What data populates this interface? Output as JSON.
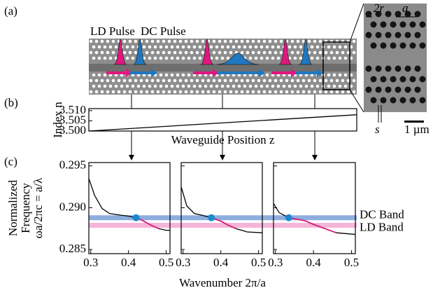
{
  "panel_labels": [
    "(a)",
    "(b)",
    "(c)"
  ],
  "pulses": [
    {
      "name": "LD Pulse",
      "color": "#e0177f"
    },
    {
      "name": "DC Pulse",
      "color": "#1f78c1"
    }
  ],
  "sem": {
    "hole_diameter": "2r",
    "period": "a",
    "gap": "s",
    "scale_bar": "1 µm"
  },
  "bands": [
    {
      "name": "DC Band",
      "color": "#7aa0d8",
      "value": 0.2888
    },
    {
      "name": "LD Band",
      "color": "#f4a9d0",
      "value": 0.2879
    }
  ],
  "chart_data": [
    {
      "type": "line",
      "y_label": "Index n",
      "x_label": "Waveguide Position z",
      "xlim": [
        0,
        1
      ],
      "ylim": [
        3.5,
        3.511
      ],
      "yticks": [
        {
          "value": 3.5,
          "label": "3.500"
        },
        {
          "value": 3.505,
          "label": "3.505"
        },
        {
          "value": 3.51,
          "label": "3.510"
        }
      ],
      "series": [
        {
          "color": "#000000",
          "x": [
            0,
            1
          ],
          "values": [
            3.5,
            3.508
          ]
        }
      ]
    },
    {
      "type": "line",
      "y_label": [
        "Normalized",
        "Frequency",
        "ωa/2πc = a/λ"
      ],
      "x_label": "Wavenumber 2π/a",
      "xlim": [
        0.295,
        0.51
      ],
      "ylim": [
        0.2845,
        0.2954
      ],
      "ytick_labels": true,
      "yticks": [
        {
          "value": 0.285,
          "label": "0.285"
        },
        {
          "value": 0.29,
          "label": "0.290"
        },
        {
          "value": 0.295,
          "label": "0.295"
        }
      ],
      "xticks": [
        0.3,
        0.4,
        0.5
      ],
      "series": [
        {
          "color": "#000000",
          "x": [
            0.295,
            0.31,
            0.33,
            0.35,
            0.38,
            0.4,
            0.42,
            0.44,
            0.46,
            0.48,
            0.5,
            0.51
          ],
          "values": [
            0.2935,
            0.2915,
            0.2899,
            0.2893,
            0.2891,
            0.289,
            0.2888,
            0.2884,
            0.2879,
            0.2875,
            0.2873,
            0.2873
          ]
        },
        {
          "color": "#d81b7d",
          "x": [
            0.42,
            0.44,
            0.46,
            0.48
          ],
          "values": [
            0.2888,
            0.2884,
            0.2879,
            0.2875
          ]
        }
      ],
      "marker": {
        "x": 0.42,
        "y": 0.2888,
        "color": "#1a8ad0"
      }
    },
    {
      "type": "line",
      "xlim": [
        0.295,
        0.51
      ],
      "ylim": [
        0.2845,
        0.2954
      ],
      "ytick_labels": false,
      "yticks": [
        0.285,
        0.29,
        0.295
      ],
      "xticks": [
        0.3,
        0.4,
        0.5
      ],
      "series": [
        {
          "color": "#000000",
          "x": [
            0.295,
            0.31,
            0.33,
            0.35,
            0.375,
            0.4,
            0.42,
            0.44,
            0.47,
            0.51
          ],
          "values": [
            0.2925,
            0.2902,
            0.2893,
            0.2891,
            0.2888,
            0.2884,
            0.2879,
            0.2875,
            0.2871,
            0.287
          ]
        },
        {
          "color": "#d81b7d",
          "x": [
            0.375,
            0.4,
            0.42,
            0.44
          ],
          "values": [
            0.2888,
            0.2884,
            0.2879,
            0.2875
          ]
        }
      ],
      "marker": {
        "x": 0.375,
        "y": 0.2888,
        "color": "#1a8ad0"
      }
    },
    {
      "type": "line",
      "xlim": [
        0.295,
        0.51
      ],
      "ylim": [
        0.2845,
        0.2954
      ],
      "ytick_labels": false,
      "yticks": [
        0.285,
        0.29,
        0.295
      ],
      "xticks": [
        0.3,
        0.4,
        0.5
      ],
      "series": [
        {
          "color": "#000000",
          "x": [
            0.295,
            0.31,
            0.335,
            0.36,
            0.38,
            0.4,
            0.43,
            0.46,
            0.51
          ],
          "values": [
            0.2905,
            0.2894,
            0.2888,
            0.2886,
            0.2884,
            0.288,
            0.2875,
            0.287,
            0.2868
          ]
        },
        {
          "color": "#d81b7d",
          "x": [
            0.335,
            0.36,
            0.38,
            0.4,
            0.43,
            0.46
          ],
          "values": [
            0.2888,
            0.2886,
            0.2884,
            0.288,
            0.2875,
            0.287
          ]
        }
      ],
      "marker": {
        "x": 0.335,
        "y": 0.2888,
        "color": "#1a8ad0"
      }
    }
  ]
}
